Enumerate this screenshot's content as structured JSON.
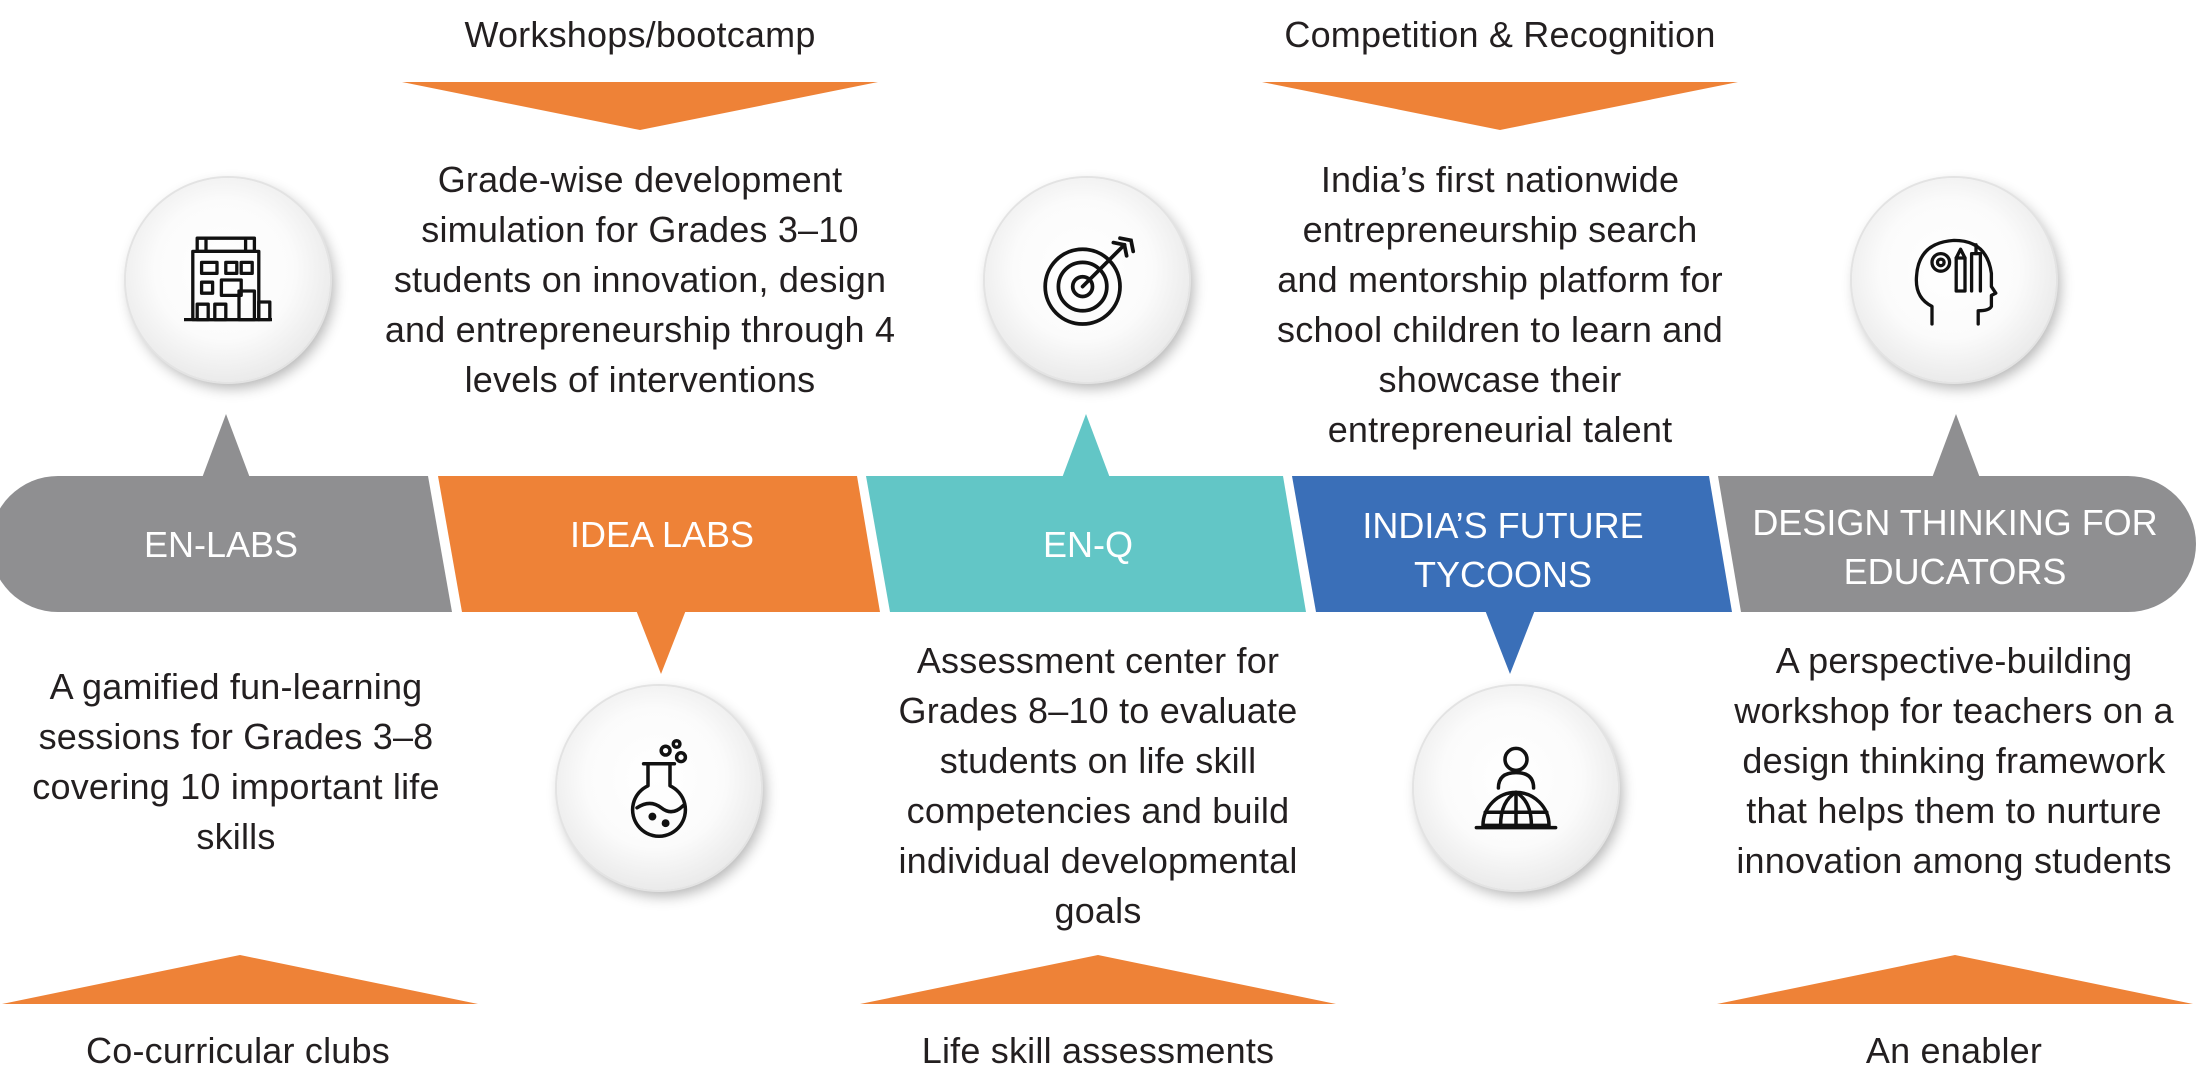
{
  "colors": {
    "grey": "#8f8f91",
    "orange": "#ee8237",
    "teal": "#62c6c6",
    "blue": "#3a6fb8",
    "text": "#231f20"
  },
  "segments": [
    {
      "label": "EN-LABS",
      "icon": "building-icon"
    },
    {
      "label": "IDEA LABS",
      "icon": "flask-icon"
    },
    {
      "label": "EN-Q",
      "icon": "target-icon"
    },
    {
      "label": "INDIA’S FUTURE TYCOONS",
      "icon": "globe-person-icon"
    },
    {
      "label": "DESIGN THINKING FOR EDUCATORS",
      "icon": "head-tools-icon"
    }
  ],
  "top_headings": {
    "workshops": "Workshops/bootcamp",
    "competition": "Competition & Recognition"
  },
  "bottom_headings": {
    "clubs": "Co-curricular clubs",
    "assessments": "Life skill assessments",
    "enabler": "An enabler"
  },
  "descriptions": {
    "en_labs": "A gamified fun-learning sessions for Grades 3–8 covering 10 important life skills",
    "idea_labs": "Grade-wise development simulation for Grades 3–10 students on innovation, design and entrepreneurship through 4 levels of interventions",
    "en_q": "Assessment center for Grades 8–10 to evaluate students on life skill competencies and build individual developmental goals",
    "tycoons": "India’s first nationwide entrepreneurship search and mentorship platform for school children to learn and showcase their entrepreneurial talent",
    "design_thinking": "A perspective-building workshop for teachers on a design thinking framework that helps them to nurture innovation among students"
  }
}
